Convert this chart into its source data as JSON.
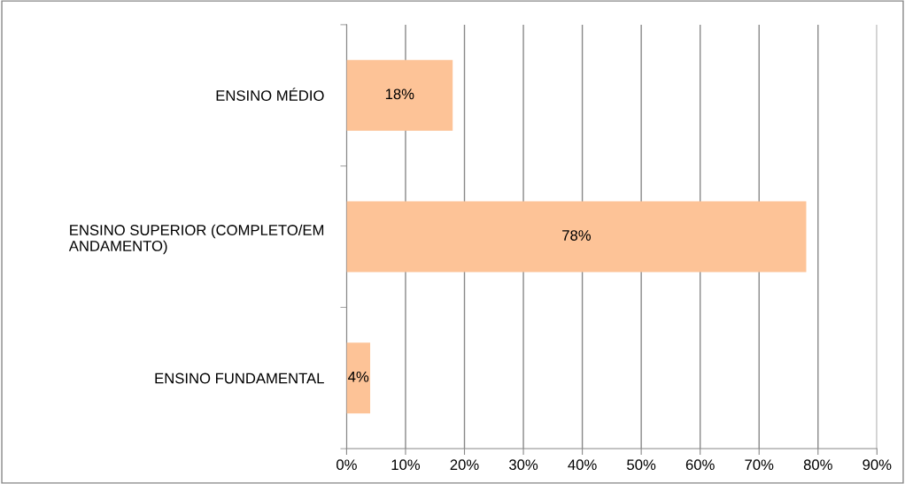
{
  "chart_data": {
    "type": "bar",
    "orientation": "horizontal",
    "categories": [
      "ENSINO MÉDIO",
      "ENSINO SUPERIOR (COMPLETO/EM\nANDAMENTO)",
      "ENSINO FUNDAMENTAL"
    ],
    "values": [
      18,
      78,
      4
    ],
    "color": "#fdc397",
    "value_labels": [
      "18%",
      "78%",
      "4%"
    ],
    "xlim": [
      0,
      90
    ],
    "xticks": [
      {
        "value": 0,
        "label": "0%"
      },
      {
        "value": 10,
        "label": "10%"
      },
      {
        "value": 20,
        "label": "20%"
      },
      {
        "value": 30,
        "label": "30%"
      },
      {
        "value": 40,
        "label": "40%"
      },
      {
        "value": 50,
        "label": "50%"
      },
      {
        "value": 60,
        "label": "60%"
      },
      {
        "value": 70,
        "label": "70%"
      },
      {
        "value": 80,
        "label": "80%"
      },
      {
        "value": 90,
        "label": "90%"
      }
    ],
    "grid": "x",
    "legend": false
  }
}
